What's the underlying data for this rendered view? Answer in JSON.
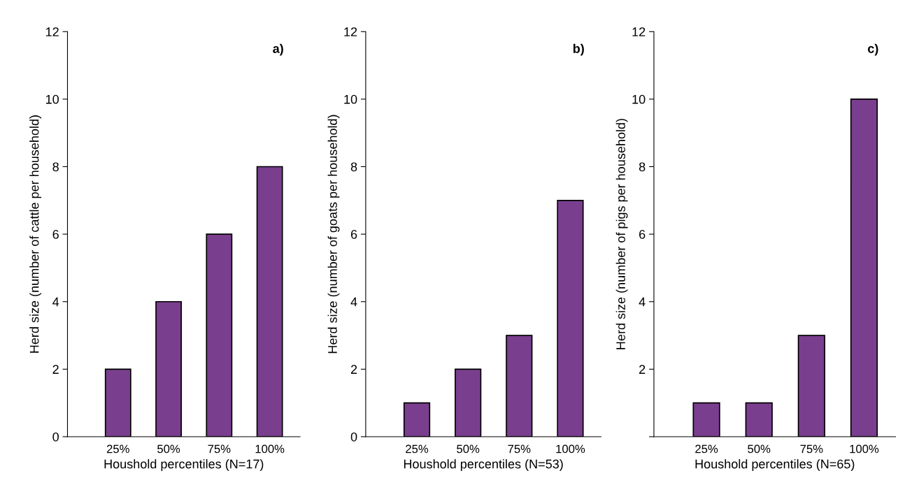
{
  "chart_data": [
    {
      "type": "bar",
      "categories": [
        "25%",
        "50%",
        "75%",
        "100%"
      ],
      "values": [
        2,
        4,
        6,
        8
      ],
      "color": "#7a3e8e",
      "xlabel": "Houshold percentiles (N=17)",
      "ylabel": "Herd size (number of cattle per household)",
      "ylim": [
        0,
        12
      ],
      "yticks": [
        0,
        2,
        4,
        6,
        8,
        10,
        12
      ],
      "annotations": [
        "a)"
      ],
      "grid": false
    },
    {
      "type": "bar",
      "categories": [
        "25%",
        "50%",
        "75%",
        "100%"
      ],
      "values": [
        1,
        2,
        3,
        7
      ],
      "color": "#7a3e8e",
      "xlabel": "Houshold percentiles (N=53)",
      "ylabel": "Herd size (number of goats per household)",
      "ylim": [
        0,
        12
      ],
      "yticks": [
        0,
        2,
        4,
        6,
        8,
        10,
        12
      ],
      "annotations": [
        "b)"
      ],
      "grid": false
    },
    {
      "type": "bar",
      "categories": [
        "25%",
        "50%",
        "75%",
        "100%"
      ],
      "values": [
        1,
        1,
        3,
        10
      ],
      "color": "#7a3e8e",
      "xlabel": "Houshold percentiles (N=65)",
      "ylabel": "Herd size (number of pigs per household)",
      "ylim": [
        0,
        12
      ],
      "yticks": [
        {
          "value": 0,
          "label": null
        },
        2,
        4,
        6,
        8,
        10,
        12
      ],
      "annotations": [
        "c)"
      ],
      "grid": false
    }
  ]
}
